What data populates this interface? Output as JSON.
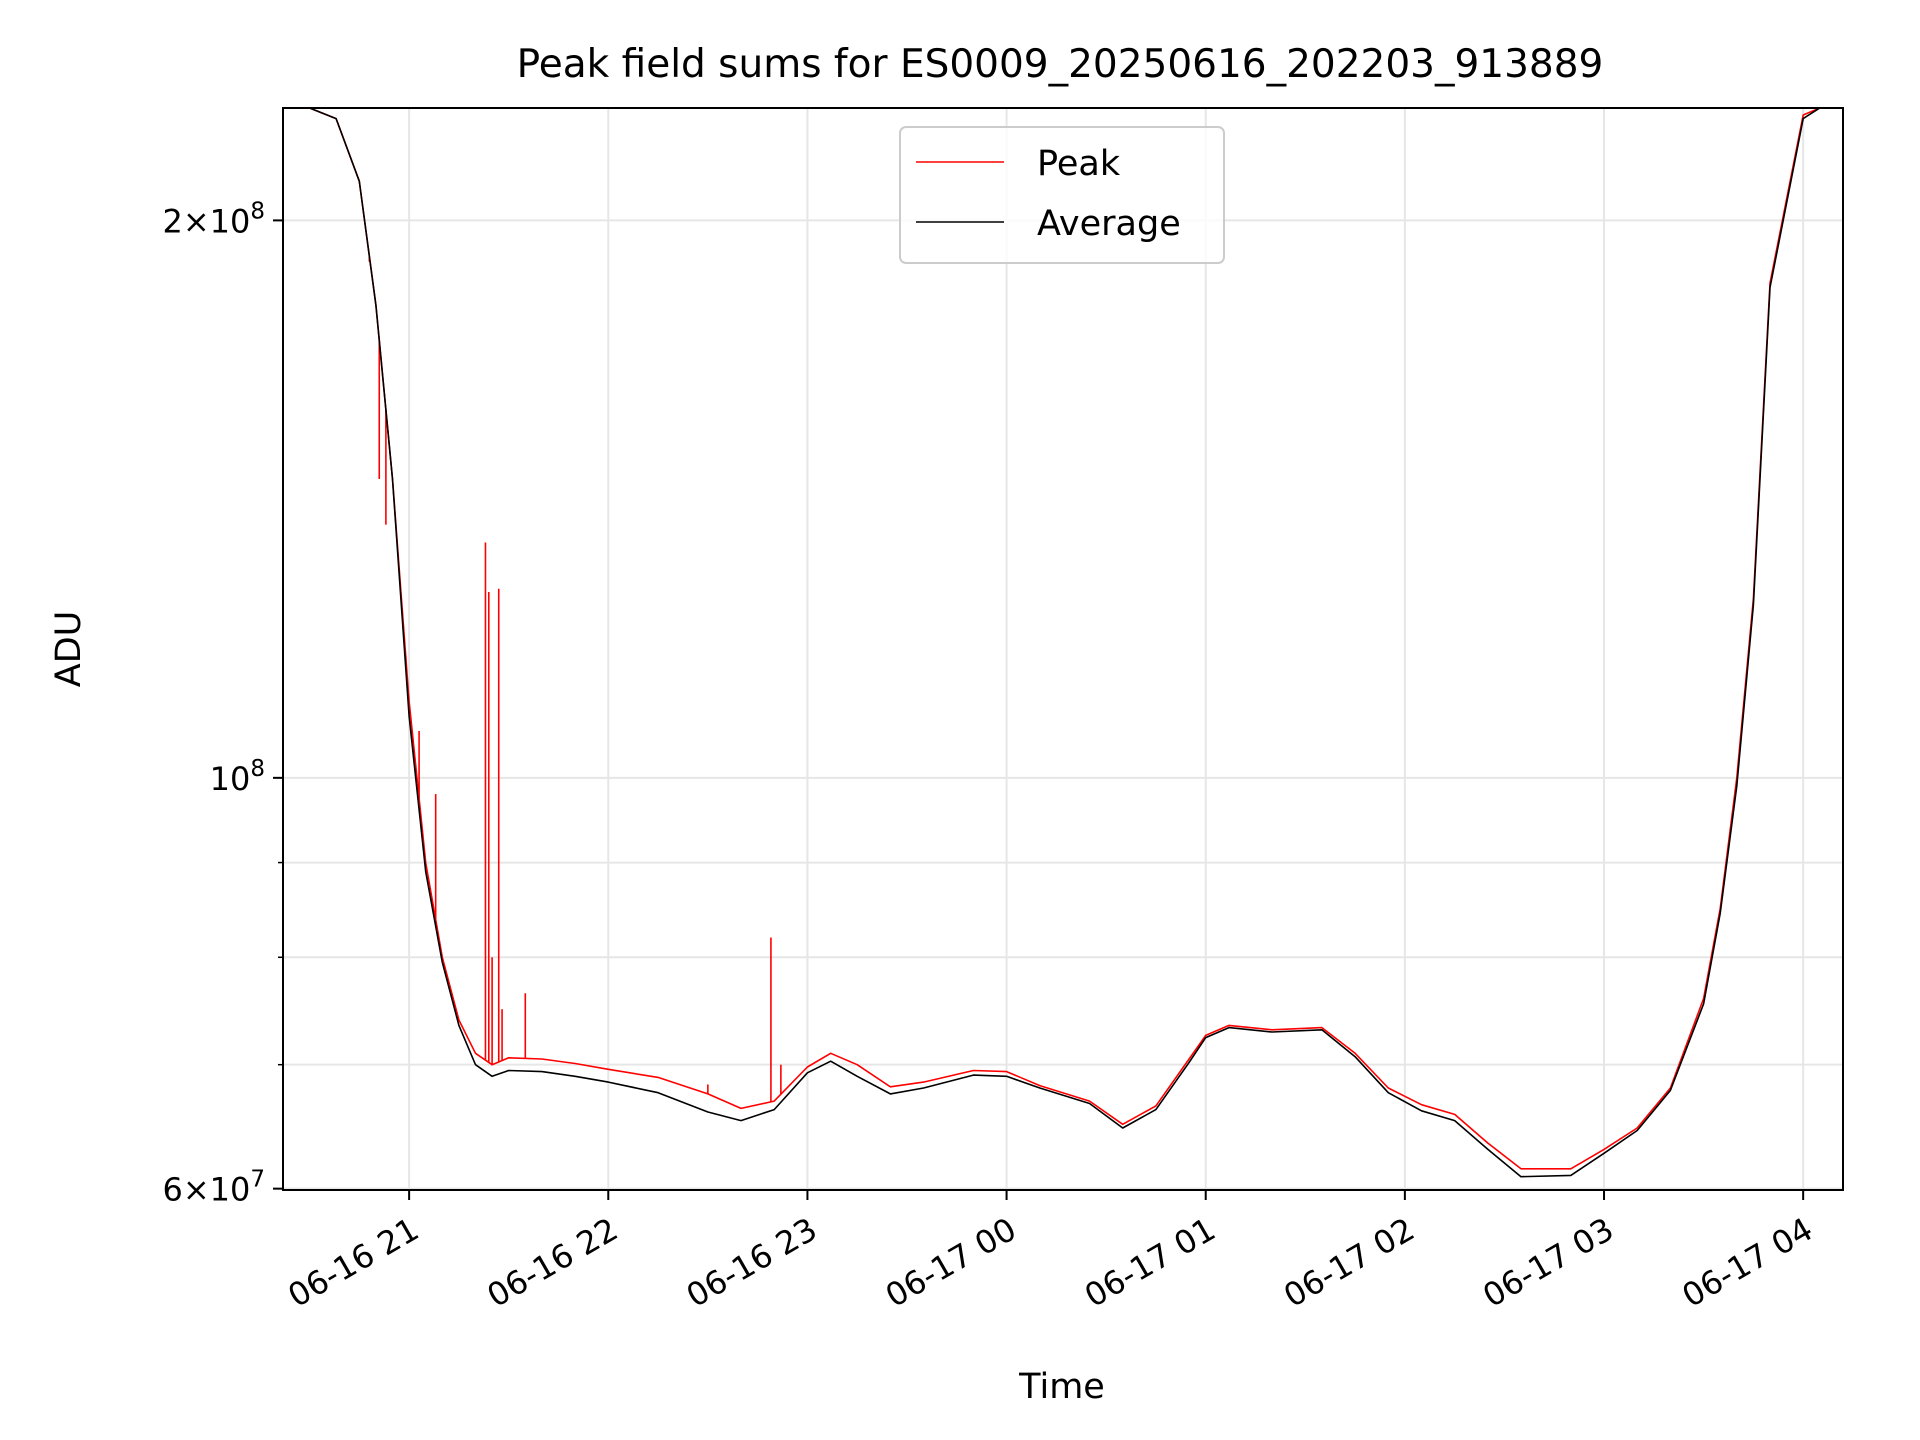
{
  "chart_data": {
    "type": "line",
    "title": "Peak field sums for ES0009_20250616_202203_913889",
    "xlabel": "Time",
    "ylabel": "ADU",
    "yscale": "log",
    "xlim": [
      "2025-06-16 20:22",
      "2025-06-17 04:12"
    ],
    "ylim": [
      59900000,
      230000000
    ],
    "grid": true,
    "legend": "upper center",
    "x_ticks": [
      {
        "value": "2025-06-16 21:00",
        "label": "06-16 21"
      },
      {
        "value": "2025-06-16 22:00",
        "label": "06-16 22"
      },
      {
        "value": "2025-06-16 23:00",
        "label": "06-16 23"
      },
      {
        "value": "2025-06-17 00:00",
        "label": "06-17 00"
      },
      {
        "value": "2025-06-17 01:00",
        "label": "06-17 01"
      },
      {
        "value": "2025-06-17 02:00",
        "label": "06-17 02"
      },
      {
        "value": "2025-06-17 03:00",
        "label": "06-17 03"
      },
      {
        "value": "2025-06-17 04:00",
        "label": "06-17 04"
      }
    ],
    "y_major_ticks": [
      {
        "value": 60000000,
        "mantissa": "6",
        "base": "10",
        "exp": "7"
      },
      {
        "value": 100000000,
        "mantissa": "",
        "base": "10",
        "exp": "8"
      },
      {
        "value": 200000000,
        "mantissa": "2",
        "base": "10",
        "exp": "8"
      }
    ],
    "y_minor_ticks": [
      70000000,
      80000000,
      90000000
    ],
    "series": [
      {
        "name": "Peak",
        "color": "#ff0000",
        "x": [
          "2025-06-16 20:22",
          "2025-06-16 20:30",
          "2025-06-16 20:38",
          "2025-06-16 20:45",
          "2025-06-16 20:50",
          "2025-06-16 20:55",
          "2025-06-16 21:00",
          "2025-06-16 21:05",
          "2025-06-16 21:10",
          "2025-06-16 21:15",
          "2025-06-16 21:20",
          "2025-06-16 21:25",
          "2025-06-16 21:30",
          "2025-06-16 21:40",
          "2025-06-16 21:50",
          "2025-06-16 22:00",
          "2025-06-16 22:15",
          "2025-06-16 22:30",
          "2025-06-16 22:40",
          "2025-06-16 22:50",
          "2025-06-16 23:00",
          "2025-06-16 23:07",
          "2025-06-16 23:15",
          "2025-06-16 23:25",
          "2025-06-16 23:35",
          "2025-06-16 23:50",
          "2025-06-17 00:00",
          "2025-06-17 00:10",
          "2025-06-17 00:25",
          "2025-06-17 00:35",
          "2025-06-17 00:45",
          "2025-06-17 00:55",
          "2025-06-17 01:00",
          "2025-06-17 01:07",
          "2025-06-17 01:20",
          "2025-06-17 01:35",
          "2025-06-17 01:45",
          "2025-06-17 01:55",
          "2025-06-17 02:05",
          "2025-06-17 02:15",
          "2025-06-17 02:25",
          "2025-06-17 02:35",
          "2025-06-17 02:50",
          "2025-06-17 03:00",
          "2025-06-17 03:10",
          "2025-06-17 03:20",
          "2025-06-17 03:30",
          "2025-06-17 03:35",
          "2025-06-17 03:40",
          "2025-06-17 03:45",
          "2025-06-17 03:50",
          "2025-06-17 04:00",
          "2025-06-17 04:05",
          "2025-06-17 04:12"
        ],
        "y": [
          230000000,
          230000000,
          227000000,
          210000000,
          180000000,
          145000000,
          110000000,
          90000000,
          80000000,
          74000000,
          71000000,
          70000000,
          70600000,
          70500000,
          70100000,
          69600000,
          68900000,
          67500000,
          66300000,
          66900000,
          69800000,
          71000000,
          70000000,
          68100000,
          68500000,
          69500000,
          69400000,
          68200000,
          66900000,
          65000000,
          66500000,
          70500000,
          72600000,
          73500000,
          73100000,
          73300000,
          71000000,
          68000000,
          66600000,
          65800000,
          63500000,
          61500000,
          61500000,
          63000000,
          64700000,
          68000000,
          76000000,
          85000000,
          100000000,
          125000000,
          185000000,
          228000000,
          230000000,
          230000000
        ],
        "spikes": [
          {
            "x": "2025-06-16 20:48",
            "y": 190000000
          },
          {
            "x": "2025-06-16 20:51",
            "y": 145000000
          },
          {
            "x": "2025-06-16 20:53",
            "y": 137000000
          },
          {
            "x": "2025-06-16 20:59",
            "y": 115000000
          },
          {
            "x": "2025-06-16 21:03",
            "y": 106000000
          },
          {
            "x": "2025-06-16 21:08",
            "y": 98000000
          },
          {
            "x": "2025-06-16 21:23",
            "y": 134000000
          },
          {
            "x": "2025-06-16 21:24",
            "y": 126000000
          },
          {
            "x": "2025-06-16 21:25",
            "y": 80000000
          },
          {
            "x": "2025-06-16 21:27",
            "y": 126500000
          },
          {
            "x": "2025-06-16 21:28",
            "y": 75000000
          },
          {
            "x": "2025-06-16 21:35",
            "y": 76500000
          },
          {
            "x": "2025-06-16 22:30",
            "y": 68300000
          },
          {
            "x": "2025-06-16 22:49",
            "y": 82000000
          },
          {
            "x": "2025-06-16 22:52",
            "y": 70000000
          }
        ]
      },
      {
        "name": "Average",
        "color": "#000000",
        "x": [
          "2025-06-16 20:22",
          "2025-06-16 20:30",
          "2025-06-16 20:38",
          "2025-06-16 20:45",
          "2025-06-16 20:50",
          "2025-06-16 20:55",
          "2025-06-16 21:00",
          "2025-06-16 21:05",
          "2025-06-16 21:10",
          "2025-06-16 21:15",
          "2025-06-16 21:20",
          "2025-06-16 21:25",
          "2025-06-16 21:30",
          "2025-06-16 21:40",
          "2025-06-16 21:50",
          "2025-06-16 22:00",
          "2025-06-16 22:15",
          "2025-06-16 22:30",
          "2025-06-16 22:40",
          "2025-06-16 22:50",
          "2025-06-16 23:00",
          "2025-06-16 23:07",
          "2025-06-16 23:15",
          "2025-06-16 23:25",
          "2025-06-16 23:35",
          "2025-06-16 23:50",
          "2025-06-17 00:00",
          "2025-06-17 00:10",
          "2025-06-17 00:25",
          "2025-06-17 00:35",
          "2025-06-17 00:45",
          "2025-06-17 00:55",
          "2025-06-17 01:00",
          "2025-06-17 01:07",
          "2025-06-17 01:20",
          "2025-06-17 01:35",
          "2025-06-17 01:45",
          "2025-06-17 01:55",
          "2025-06-17 02:05",
          "2025-06-17 02:15",
          "2025-06-17 02:25",
          "2025-06-17 02:35",
          "2025-06-17 02:50",
          "2025-06-17 03:00",
          "2025-06-17 03:10",
          "2025-06-17 03:20",
          "2025-06-17 03:30",
          "2025-06-17 03:35",
          "2025-06-17 03:40",
          "2025-06-17 03:45",
          "2025-06-17 03:50",
          "2025-06-17 04:00",
          "2025-06-17 04:05",
          "2025-06-17 04:12"
        ],
        "y": [
          230000000,
          230000000,
          227000000,
          210000000,
          180000000,
          145000000,
          108000000,
          89000000,
          79500000,
          73500000,
          70000000,
          69000000,
          69500000,
          69400000,
          69000000,
          68500000,
          67600000,
          66000000,
          65300000,
          66200000,
          69300000,
          70300000,
          69000000,
          67500000,
          68000000,
          69100000,
          69000000,
          68000000,
          66700000,
          64700000,
          66200000,
          70200000,
          72400000,
          73300000,
          72900000,
          73100000,
          70700000,
          67600000,
          66100000,
          65300000,
          63000000,
          60900000,
          61000000,
          62700000,
          64500000,
          67800000,
          75500000,
          84500000,
          99000000,
          124000000,
          184000000,
          227000000,
          230000000,
          230000000
        ]
      }
    ]
  }
}
